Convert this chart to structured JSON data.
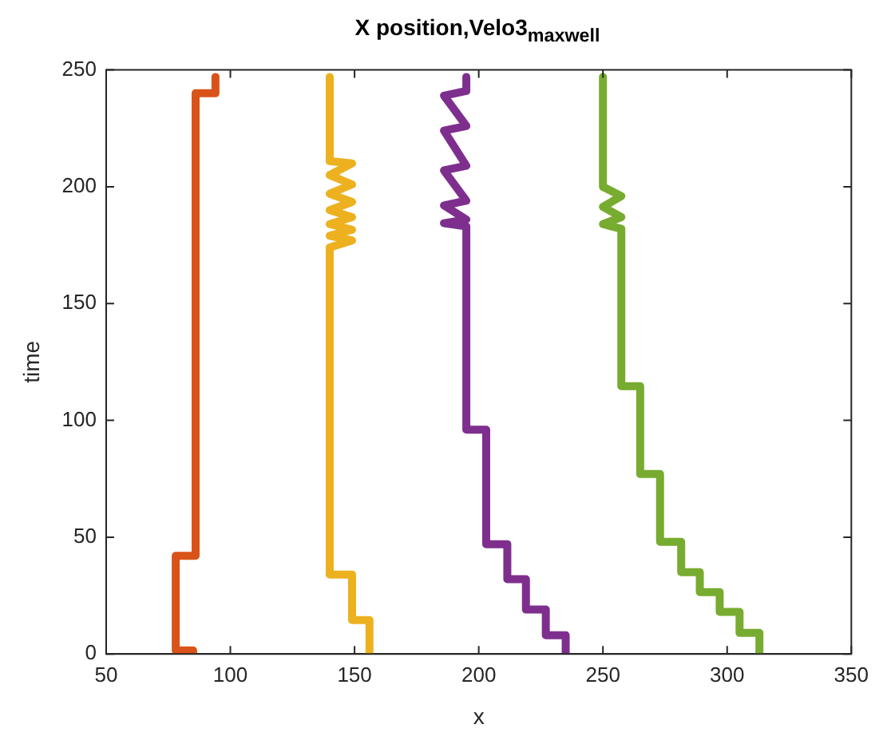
{
  "chart_data": {
    "type": "line",
    "title": "X position,Velo3$_{maxwell}$",
    "xlabel": "x",
    "ylabel": "time",
    "xlim": [
      50,
      350
    ],
    "xticks": [
      50,
      100,
      150,
      200,
      250,
      300,
      350
    ],
    "ylim": [
      0,
      250
    ],
    "yticks": [
      0,
      50,
      100,
      150,
      200,
      250
    ],
    "grid": false,
    "legend": false,
    "series": [
      {
        "color": "#d95319",
        "x": [
          85,
          85,
          78,
          78,
          86,
          86,
          94,
          94
        ],
        "values": [
          0,
          1.5,
          1.5,
          42,
          42,
          240,
          240,
          247
        ]
      },
      {
        "color": "#edb120",
        "x": [
          156,
          156,
          149,
          149,
          140,
          140,
          149,
          140,
          149,
          140,
          149,
          140,
          149,
          140,
          149,
          140,
          149,
          140,
          140
        ],
        "values": [
          0,
          14.5,
          14.5,
          34,
          34,
          174,
          177,
          179,
          181.6,
          184,
          187,
          190,
          193.5,
          197,
          201,
          205,
          210,
          211,
          247
        ]
      },
      {
        "color": "#7e2f8e",
        "x": [
          235,
          235,
          227,
          227,
          219,
          219,
          211.5,
          211.5,
          203,
          203,
          195,
          195,
          186,
          195,
          186,
          195,
          186,
          195,
          186,
          195,
          186,
          195,
          195
        ],
        "values": [
          0,
          8,
          8,
          19,
          19,
          32,
          32,
          47,
          47,
          96,
          96,
          183,
          184.4,
          186,
          192,
          194,
          207,
          209,
          224,
          226,
          239,
          241,
          247
        ]
      },
      {
        "color": "#77ac30",
        "x": [
          313,
          313,
          305,
          305,
          297,
          297,
          289,
          289,
          281.5,
          281.5,
          273,
          273,
          265,
          265,
          257.4,
          257.4,
          250,
          257.4,
          250,
          257.4,
          250,
          250
        ],
        "values": [
          0,
          9,
          9,
          18,
          18,
          26.5,
          26.5,
          35,
          35,
          48,
          48,
          77,
          77,
          114.6,
          114.6,
          182,
          184,
          187,
          191.4,
          196,
          200,
          247
        ]
      }
    ]
  }
}
